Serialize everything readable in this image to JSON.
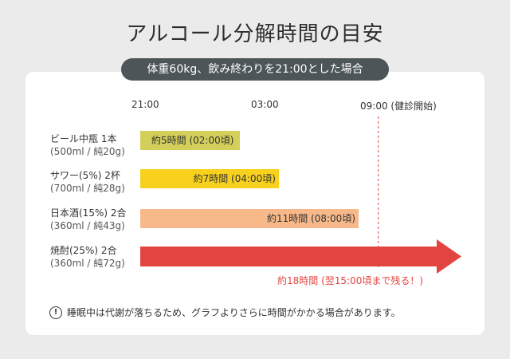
{
  "title": "アルコール分解時間の目安",
  "subtitle": "体重60kg、飲み終わりを21:00とした場合",
  "footnote": "睡眠中は代謝が落ちるため、グラフよりさらに時間がかかる場合があります。",
  "colors": {
    "beer": "#d3cf5a",
    "sour": "#f7d11e",
    "sake": "#f8b98a",
    "shochu": "#e2443f",
    "guide": "#e2443f",
    "pill": "#4c5558",
    "background": "#ebebeb",
    "card": "#ffffff"
  },
  "chart_data": {
    "type": "bar",
    "orientation": "horizontal",
    "x_tick_labels": [
      "21:00",
      "03:00",
      "09:00 (健診開始)"
    ],
    "x_ticks_hours": [
      0,
      6,
      12
    ],
    "reference_line": {
      "hours": 12,
      "label": "09:00 (健診開始)"
    },
    "categories": [
      {
        "name": "ビール中瓶 1本",
        "detail": "(500ml / 純20g)"
      },
      {
        "name": "サワー(5%) 2杯",
        "detail": "(700ml / 純28g)"
      },
      {
        "name": "日本酒(15%) 2合",
        "detail": "(360ml / 純43g)"
      },
      {
        "name": "焼酎(25%) 2合",
        "detail": "(360ml / 純72g)"
      }
    ],
    "values_hours": [
      5,
      7,
      11,
      18
    ],
    "bar_labels": [
      "約5時間 (02:00頃)",
      "約7時間 (04:00頃)",
      "約11時間 (08:00頃)",
      "約18時間 (翌15:00頃まで残る！)"
    ]
  }
}
